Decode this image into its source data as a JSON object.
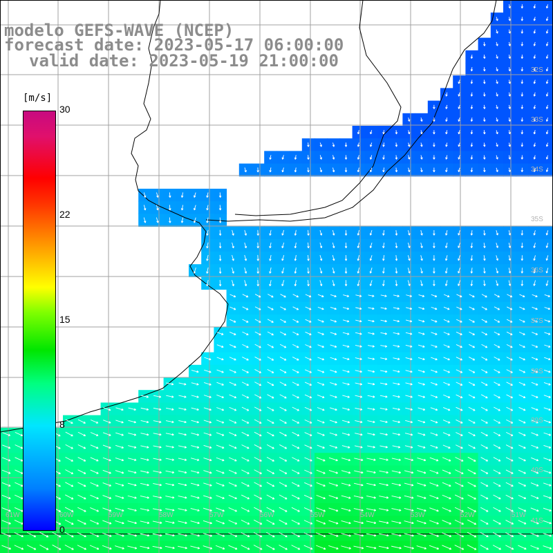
{
  "header": {
    "line1": "modelo GEFS-WAVE (NCEP)",
    "line2": "forecast date: 2023-05-17 06:00:00",
    "line3": "valid date: 2023-05-19 21:00:00"
  },
  "colorbar": {
    "unit": "[m/s]",
    "ticks": [
      "30",
      "22",
      "15",
      "8",
      "0"
    ],
    "min": 0,
    "max": 30,
    "colors": [
      "#0000ff",
      "#0080ff",
      "#00e6ff",
      "#00ff80",
      "#00e600",
      "#80ff00",
      "#ffff00",
      "#ff9900",
      "#ff3300",
      "#ff0000",
      "#e0106c",
      "#c80a80"
    ]
  },
  "map": {
    "lat_labels": [
      "32S",
      "33S",
      "34S",
      "35S",
      "36S",
      "37S",
      "38S",
      "39S",
      "40S",
      "41S"
    ],
    "lon_labels": [
      "61W",
      "60W",
      "59W",
      "58W",
      "57W",
      "56W",
      "55W",
      "54W",
      "53W",
      "52W",
      "51W"
    ],
    "land_color": "#ffffff",
    "coast_color": "#000000",
    "grid_color": "#a0a0a0",
    "arrow_color": "#ffffff",
    "field": "wind speed and direction"
  }
}
